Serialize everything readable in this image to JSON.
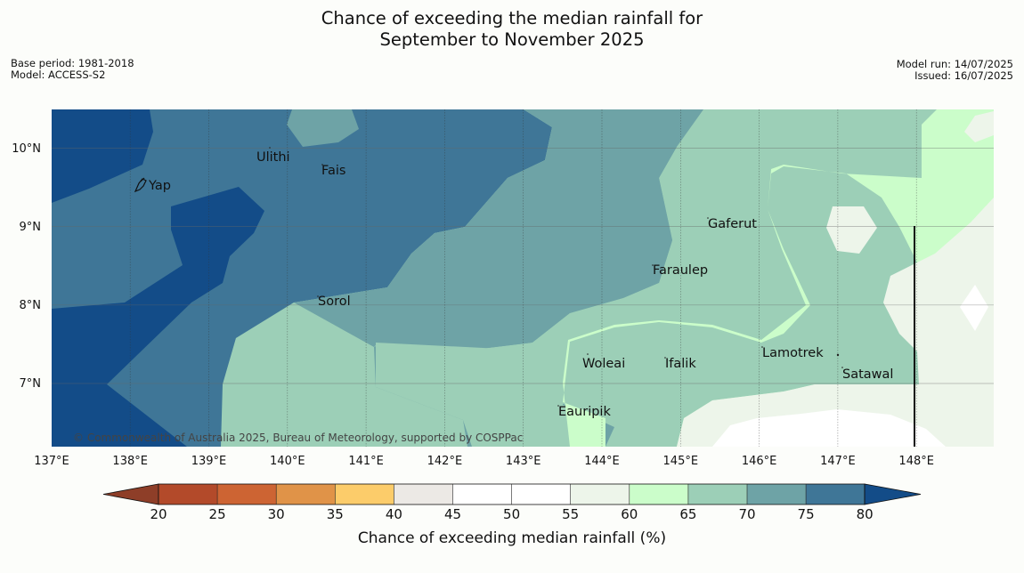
{
  "title": {
    "line1": "Chance of exceeding the median rainfall for",
    "line2": "September to November 2025"
  },
  "meta": {
    "base_period": "Base period: 1981-2018",
    "model": "Model: ACCESS-S2",
    "model_run": "Model run: 14/07/2025",
    "issued": "Issued: 16/07/2025"
  },
  "map": {
    "lon_labels": [
      "137°E",
      "138°E",
      "139°E",
      "140°E",
      "141°E",
      "142°E",
      "143°E",
      "144°E",
      "145°E",
      "146°E",
      "147°E",
      "148°E"
    ],
    "lat_labels": [
      "10°N",
      "9°N",
      "8°N",
      "7°N"
    ],
    "places": [
      "Ulithi",
      "Fais",
      "Yap",
      "Gaferut",
      "Faraulep",
      "Sorol",
      "Lamotrek",
      "Woleai",
      "Ifalik",
      "Satawal",
      "Eauripik"
    ],
    "copyright": "© Commonwealth of Australia 2025, Bureau of Meteorology, supported by COSPPac"
  },
  "colorbar": {
    "title": "Chance of exceeding median rainfall (%)",
    "ticks": [
      "20",
      "25",
      "30",
      "35",
      "40",
      "45",
      "50",
      "55",
      "60",
      "65",
      "70",
      "75",
      "80"
    ],
    "colors": {
      "below_20": "#8e3e28",
      "c20_25": "#b34a2a",
      "c25_30": "#cd6433",
      "c30_35": "#e09348",
      "c35_40": "#fccc6a",
      "c40_45": "#ece9e5",
      "c45_50": "#ffffff",
      "c50_55": "#ffffff",
      "c55_60": "#edf5ea",
      "c60_65": "#cbfdca",
      "c65_70": "#9ccfb7",
      "c70_75": "#6ea3a6",
      "c75_80": "#3f7697",
      "above_80": "#134c88"
    }
  }
}
